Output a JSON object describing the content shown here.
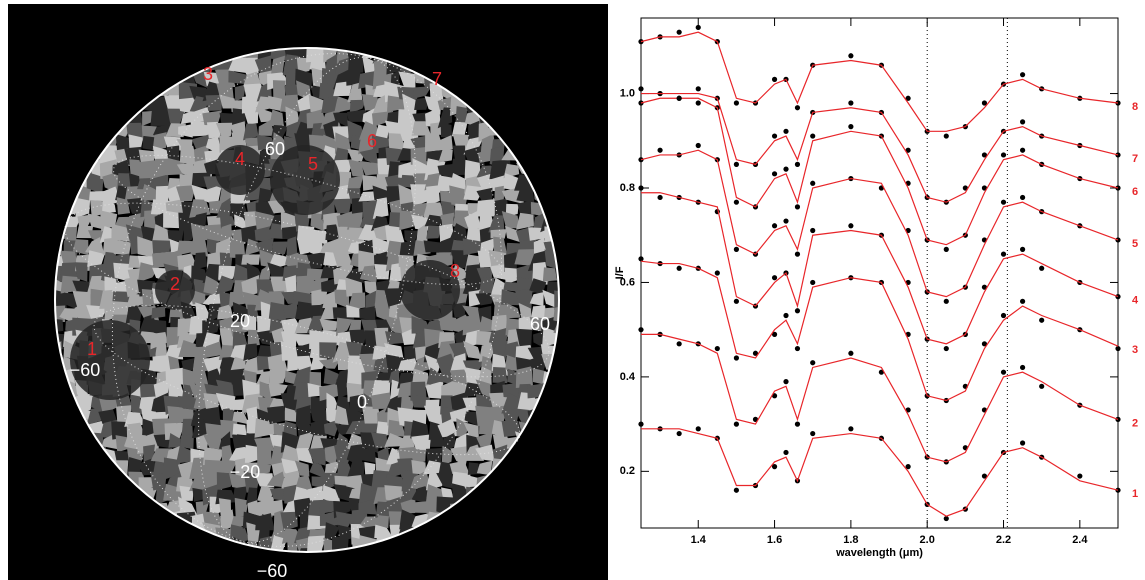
{
  "map": {
    "feature_labels": [
      "1",
      "2",
      "3",
      "4",
      "5",
      "6",
      "7",
      "8"
    ],
    "grid_labels": [
      "60",
      "20",
      "0",
      "−20",
      "−60",
      "−60",
      "60"
    ]
  },
  "chart_data": {
    "type": "scatter",
    "x_label": "wavelength (μm)",
    "y_label": "I/F",
    "x": [
      1.25,
      1.3,
      1.35,
      1.4,
      1.45,
      1.5,
      1.55,
      1.6,
      1.63,
      1.66,
      1.7,
      1.8,
      1.88,
      1.95,
      2.0,
      2.05,
      2.1,
      2.15,
      2.2,
      2.25,
      2.3,
      2.4,
      2.5
    ],
    "xlim": [
      1.25,
      2.5
    ],
    "ylim": [
      0.08,
      1.16
    ],
    "xticks": [
      1.4,
      1.6,
      1.8,
      {
        "value": 2,
        "label": "2.0"
      },
      2.2,
      2.4
    ],
    "yticks": [
      0.2,
      0.4,
      0.6,
      0.8,
      {
        "value": 1,
        "label": "1.0"
      }
    ],
    "vlines": [
      2,
      2.21
    ],
    "fit_color": "#e8262a",
    "series": [
      {
        "name": "1",
        "color": "#000000",
        "values": [
          0.3,
          0.29,
          0.28,
          0.29,
          0.27,
          0.16,
          0.17,
          0.21,
          0.24,
          0.18,
          0.28,
          0.29,
          0.27,
          0.21,
          0.13,
          0.1,
          0.12,
          0.19,
          0.24,
          0.26,
          0.23,
          0.19,
          0.16
        ],
        "fit": [
          0.29,
          0.29,
          0.29,
          0.28,
          0.27,
          0.17,
          0.17,
          0.22,
          0.23,
          0.18,
          0.27,
          0.28,
          0.27,
          0.2,
          0.13,
          0.105,
          0.12,
          0.18,
          0.24,
          0.25,
          0.23,
          0.18,
          0.16
        ]
      },
      {
        "name": "2",
        "color": "#000000",
        "values": [
          0.5,
          0.49,
          0.47,
          0.47,
          0.46,
          0.3,
          0.31,
          0.36,
          0.39,
          0.3,
          0.43,
          0.45,
          0.41,
          0.33,
          0.23,
          0.22,
          0.25,
          0.33,
          0.41,
          0.42,
          0.38,
          0.34,
          0.31
        ],
        "fit": [
          0.49,
          0.49,
          0.48,
          0.47,
          0.45,
          0.31,
          0.3,
          0.37,
          0.38,
          0.31,
          0.42,
          0.44,
          0.42,
          0.32,
          0.23,
          0.22,
          0.24,
          0.32,
          0.4,
          0.41,
          0.39,
          0.34,
          0.31
        ]
      },
      {
        "name": "3",
        "color": "#000000",
        "values": [
          0.65,
          0.64,
          0.63,
          0.63,
          0.62,
          0.44,
          0.45,
          0.49,
          0.53,
          0.46,
          0.6,
          0.61,
          0.6,
          0.49,
          0.36,
          0.35,
          0.38,
          0.47,
          0.53,
          0.56,
          0.52,
          0.5,
          0.46
        ],
        "fit": [
          0.645,
          0.64,
          0.64,
          0.63,
          0.61,
          0.45,
          0.44,
          0.5,
          0.52,
          0.47,
          0.59,
          0.61,
          0.6,
          0.48,
          0.36,
          0.35,
          0.37,
          0.46,
          0.52,
          0.55,
          0.53,
          0.5,
          0.465
        ]
      },
      {
        "name": "4",
        "color": "#000000",
        "values": [
          0.8,
          0.78,
          0.78,
          0.77,
          0.75,
          0.56,
          0.55,
          0.61,
          0.62,
          0.54,
          0.71,
          0.72,
          0.7,
          0.6,
          0.48,
          0.46,
          0.49,
          0.59,
          0.66,
          0.67,
          0.63,
          0.6,
          0.57
        ],
        "fit": [
          0.79,
          0.79,
          0.78,
          0.77,
          0.76,
          0.57,
          0.55,
          0.6,
          0.62,
          0.55,
          0.7,
          0.71,
          0.7,
          0.59,
          0.48,
          0.47,
          0.49,
          0.58,
          0.65,
          0.66,
          0.64,
          0.6,
          0.57
        ]
      },
      {
        "name": "5",
        "color": "#000000",
        "values": [
          0.86,
          0.88,
          0.87,
          0.89,
          0.86,
          0.67,
          0.66,
          0.72,
          0.73,
          0.66,
          0.81,
          0.82,
          0.8,
          0.71,
          0.58,
          0.56,
          0.59,
          0.69,
          0.77,
          0.78,
          0.75,
          0.72,
          0.69
        ],
        "fit": [
          0.86,
          0.87,
          0.87,
          0.88,
          0.86,
          0.68,
          0.66,
          0.71,
          0.72,
          0.67,
          0.8,
          0.82,
          0.81,
          0.7,
          0.58,
          0.57,
          0.59,
          0.68,
          0.76,
          0.77,
          0.75,
          0.72,
          0.69
        ]
      },
      {
        "name": "6",
        "color": "#000000",
        "values": [
          0.98,
          1.0,
          0.99,
          0.98,
          0.97,
          0.77,
          0.76,
          0.83,
          0.84,
          0.76,
          0.91,
          0.93,
          0.91,
          0.81,
          0.69,
          0.67,
          0.7,
          0.8,
          0.87,
          0.88,
          0.85,
          0.82,
          0.8
        ],
        "fit": [
          0.98,
          0.99,
          0.99,
          0.99,
          0.97,
          0.78,
          0.76,
          0.82,
          0.83,
          0.77,
          0.9,
          0.92,
          0.91,
          0.8,
          0.69,
          0.68,
          0.7,
          0.79,
          0.86,
          0.87,
          0.85,
          0.82,
          0.8
        ]
      },
      {
        "name": "7",
        "color": "#000000",
        "values": [
          1.01,
          1.0,
          0.99,
          1.01,
          0.99,
          0.85,
          0.85,
          0.91,
          0.92,
          0.85,
          0.96,
          0.98,
          0.96,
          0.88,
          0.78,
          0.77,
          0.8,
          0.87,
          0.92,
          0.94,
          0.91,
          0.89,
          0.87
        ],
        "fit": [
          1.0,
          1.0,
          1.0,
          1.0,
          0.99,
          0.86,
          0.85,
          0.9,
          0.91,
          0.86,
          0.96,
          0.97,
          0.96,
          0.87,
          0.78,
          0.77,
          0.79,
          0.86,
          0.92,
          0.93,
          0.91,
          0.89,
          0.87
        ]
      },
      {
        "name": "8",
        "color": "#000000",
        "values": [
          1.11,
          1.12,
          1.13,
          1.14,
          1.11,
          0.98,
          0.98,
          1.03,
          1.03,
          0.97,
          1.06,
          1.08,
          1.06,
          0.99,
          0.92,
          0.91,
          0.93,
          0.98,
          1.02,
          1.04,
          1.01,
          0.99,
          0.98
        ],
        "fit": [
          1.11,
          1.12,
          1.12,
          1.13,
          1.11,
          0.99,
          0.98,
          1.02,
          1.03,
          0.98,
          1.06,
          1.07,
          1.06,
          0.98,
          0.92,
          0.92,
          0.93,
          0.97,
          1.02,
          1.03,
          1.01,
          0.99,
          0.98
        ]
      }
    ]
  }
}
